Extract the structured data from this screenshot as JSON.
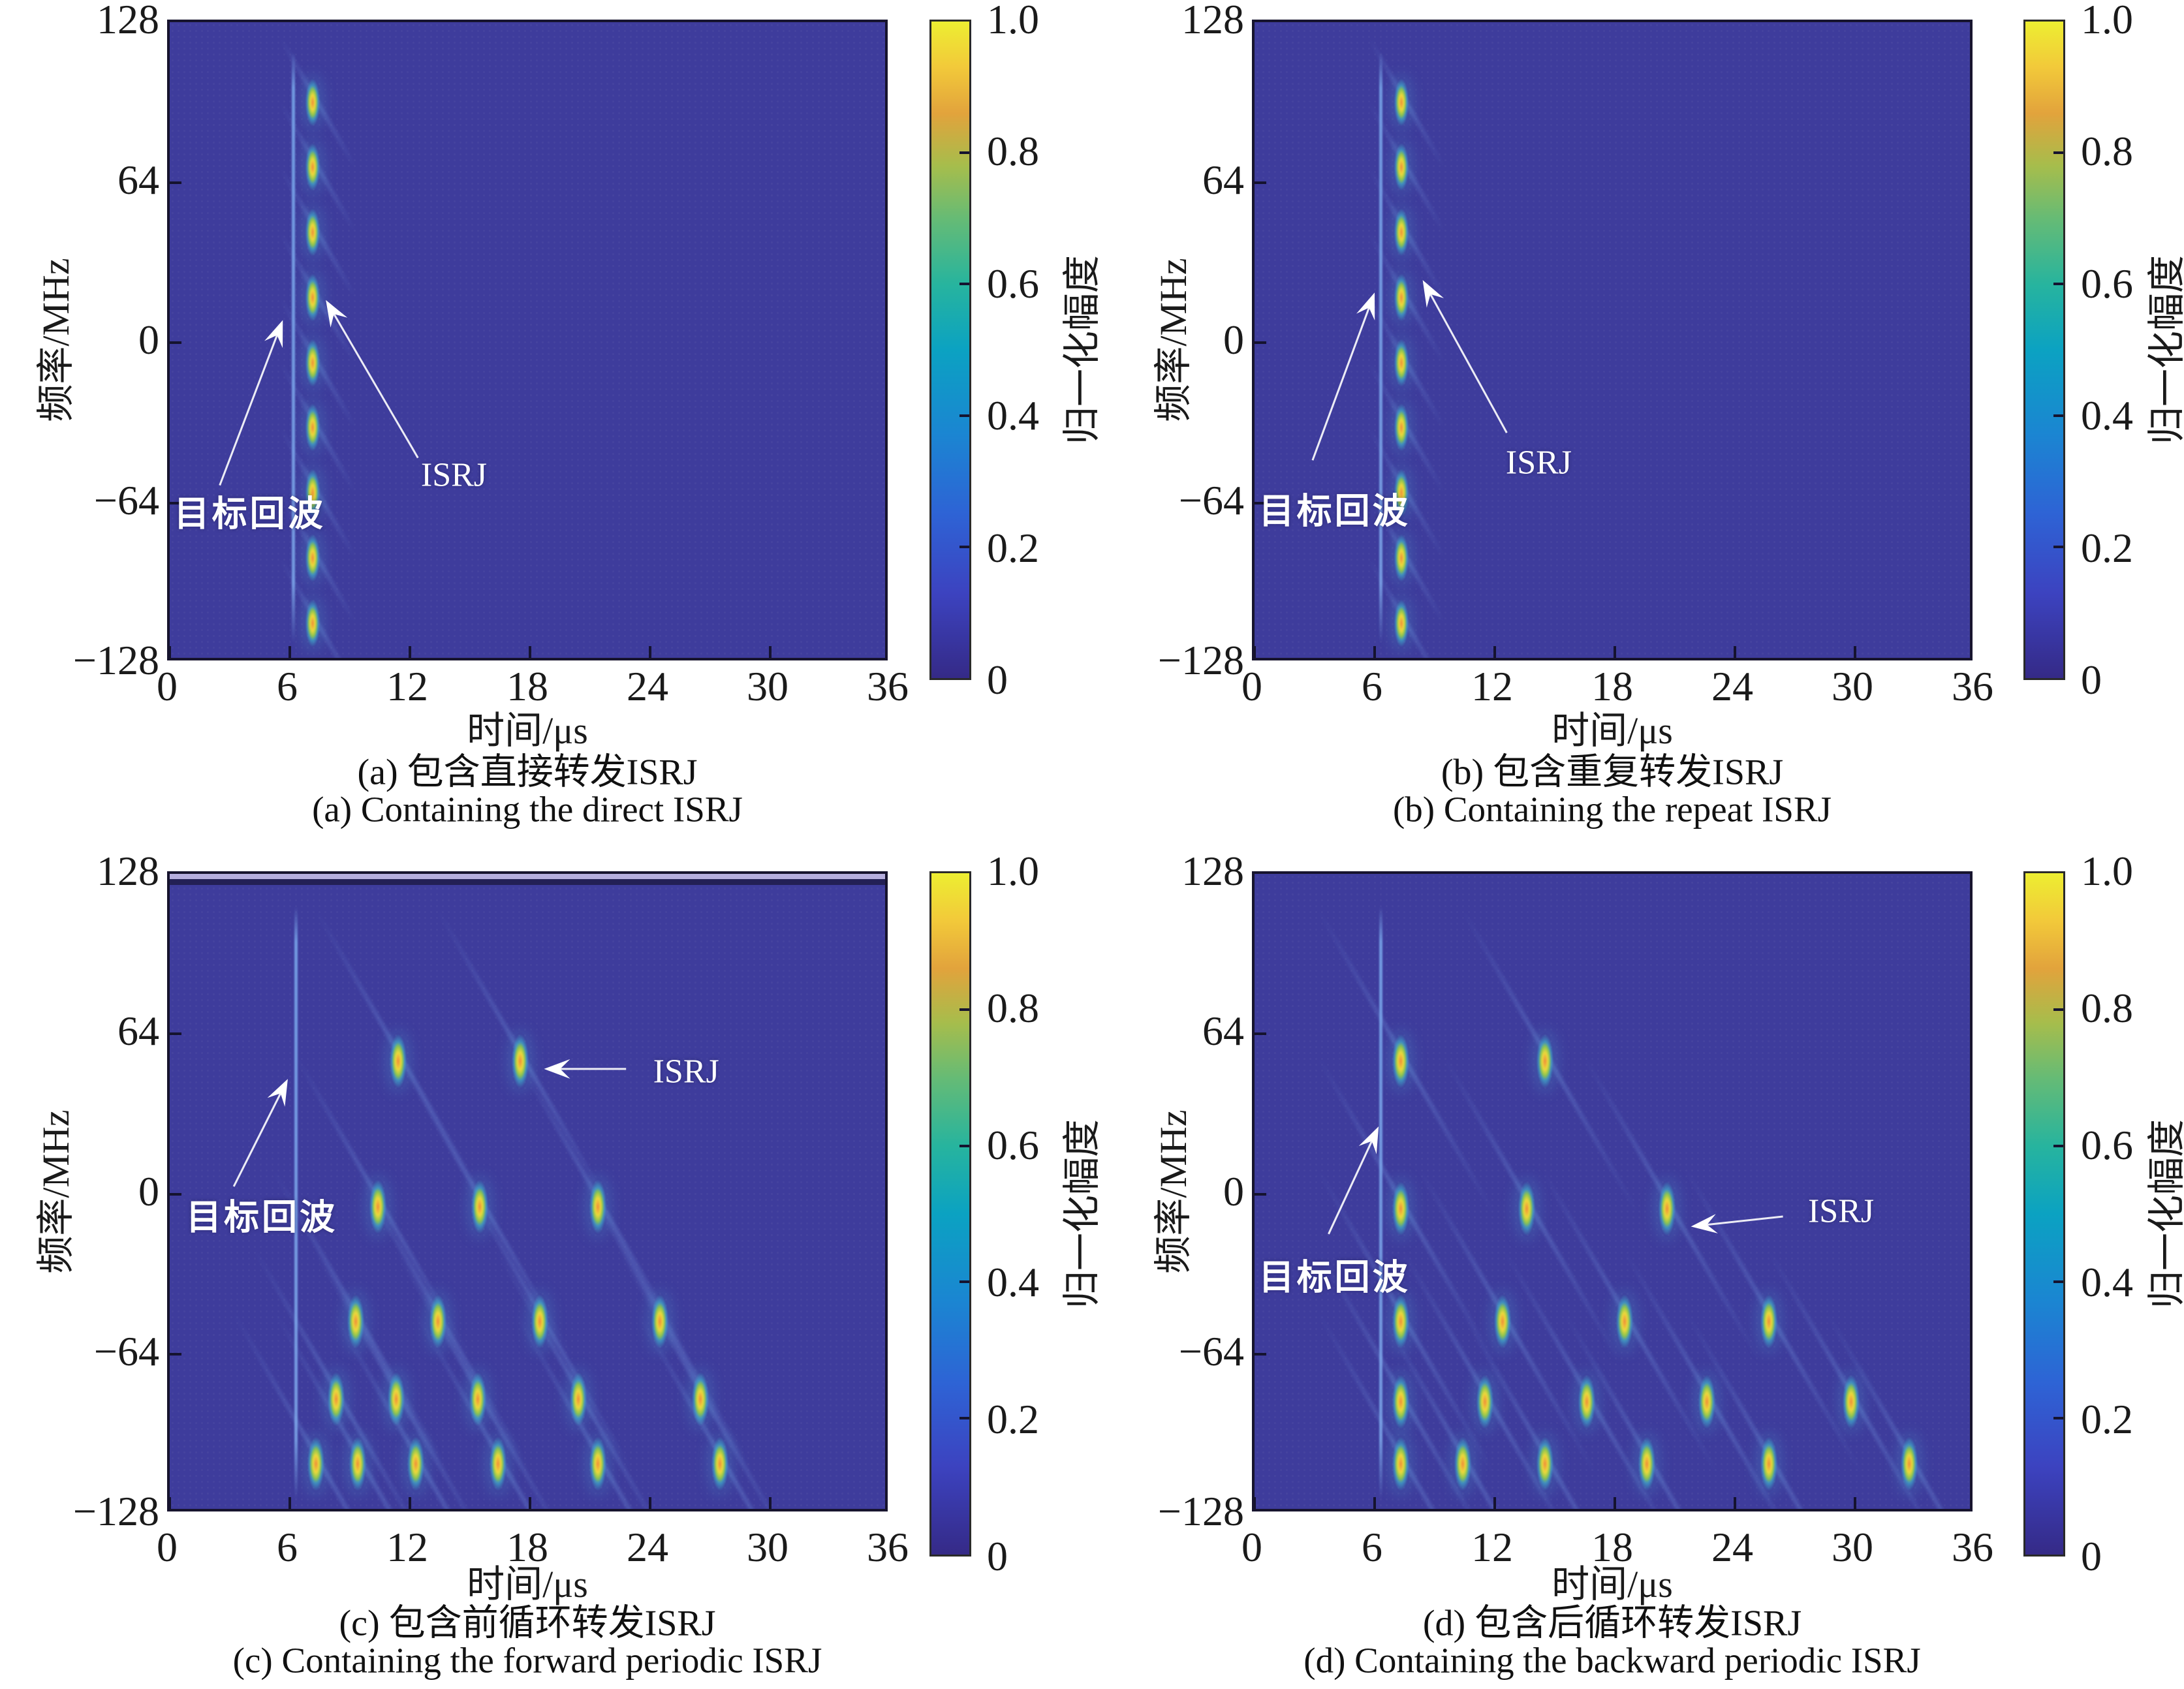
{
  "figure_labels": {
    "xlabel": "时间/μs",
    "ylabel": "频率/MHz",
    "colorbar_label": "归一化幅度",
    "yticks": [
      "128",
      "64",
      "0",
      "−64",
      "−128"
    ],
    "ytick_values": [
      128,
      64,
      0,
      -64,
      -128
    ],
    "xticks": [
      "0",
      "6",
      "12",
      "18",
      "24",
      "30",
      "36"
    ],
    "xtick_values": [
      0,
      6,
      12,
      18,
      24,
      30,
      36
    ],
    "colorbar_ticks": [
      "1.0",
      "0.8",
      "0.6",
      "0.4",
      "0.2",
      "0"
    ],
    "colorbar_tick_values": [
      1.0,
      0.8,
      0.6,
      0.4,
      0.2,
      0
    ]
  },
  "colors": {
    "plot_background": "#3e3c9c",
    "axis_line": "#17142e",
    "annotation": "#ffffff",
    "colorbar_stops": [
      "#352a87 0%",
      "#3c43c0 13%",
      "#2e63d5 25%",
      "#1b85d2 37%",
      "#0ba2c2 50%",
      "#27b49e 60%",
      "#66bb75 70%",
      "#a6bd4c 78%",
      "#e2a33c 86%",
      "#f2c93a 93%",
      "#edee31 100%"
    ]
  },
  "chart_data": [
    {
      "id": "a",
      "type": "heatmap",
      "subtype": "time-frequency spectrogram",
      "caption_zh": "(a) 包含直接转发ISRJ",
      "caption_en": "(a) Containing the direct ISRJ",
      "xlabel": "时间/μs",
      "ylabel": "频率/MHz",
      "xlim": [
        0,
        36
      ],
      "ylim": [
        -128,
        128
      ],
      "colormap": "parula",
      "target_echo": {
        "t": 6.15,
        "f_min": -120,
        "f_max": 116
      },
      "isrj_column": {
        "t": 7.15,
        "segment_f": [
          96,
          70,
          44,
          18,
          -8,
          -34,
          -60,
          -86,
          -112
        ],
        "segment_height_mhz": 15
      },
      "blob_rows": [],
      "annotations": [
        {
          "text": "目标回波",
          "lang": "zh",
          "t": 4.0,
          "f": -67,
          "arrow": {
            "from": [
              2.5,
              -57
            ],
            "to": [
              5.65,
              9
            ]
          }
        },
        {
          "text": "ISRJ",
          "lang": "en",
          "t": 14.2,
          "f": -53,
          "arrow": {
            "from": [
              12.4,
              -46
            ],
            "to": [
              7.8,
              17
            ]
          }
        }
      ],
      "edge_bands": false
    },
    {
      "id": "b",
      "type": "heatmap",
      "subtype": "time-frequency spectrogram",
      "caption_zh": "(b) 包含重复转发ISRJ",
      "caption_en": "(b) Containing the repeat ISRJ",
      "xlabel": "时间/μs",
      "ylabel": "频率/MHz",
      "xlim": [
        0,
        36
      ],
      "ylim": [
        -128,
        128
      ],
      "colormap": "parula",
      "target_echo": {
        "t": 6.3,
        "f_min": -120,
        "f_max": 116
      },
      "isrj_column": {
        "t": 7.35,
        "segment_f": [
          96,
          70,
          44,
          18,
          -8,
          -34,
          -60,
          -86,
          -112
        ],
        "segment_height_mhz": 15
      },
      "blob_rows": [],
      "annotations": [
        {
          "text": "目标回波",
          "lang": "zh",
          "t": 4.0,
          "f": -66,
          "arrow": {
            "from": [
              2.9,
              -47
            ],
            "to": [
              6.0,
              20
            ]
          }
        },
        {
          "text": "ISRJ",
          "lang": "en",
          "t": 14.2,
          "f": -48,
          "arrow": {
            "from": [
              12.6,
              -36
            ],
            "to": [
              8.4,
              25
            ]
          }
        }
      ],
      "edge_bands": false
    },
    {
      "id": "c",
      "type": "heatmap",
      "subtype": "time-frequency spectrogram",
      "caption_zh": "(c) 包含前循环转发ISRJ",
      "caption_en": "(c) Containing the forward periodic ISRJ",
      "xlabel": "时间/μs",
      "ylabel": "频率/MHz",
      "xlim": [
        0,
        36
      ],
      "ylim": [
        -128,
        128
      ],
      "colormap": "parula",
      "target_echo": {
        "t": 6.3,
        "f_min": -122,
        "f_max": 115
      },
      "isrj_column": null,
      "blob_rows": [
        {
          "f": 53,
          "t": [
            11.4,
            17.5
          ]
        },
        {
          "f": -5,
          "t": [
            10.4,
            15.5,
            21.4
          ]
        },
        {
          "f": -51,
          "t": [
            9.3,
            13.4,
            18.5,
            24.5
          ]
        },
        {
          "f": -82,
          "t": [
            8.3,
            11.3,
            15.4,
            20.4,
            26.5
          ]
        },
        {
          "f": -108,
          "t": [
            7.3,
            9.4,
            12.3,
            16.4,
            21.4,
            27.5
          ]
        }
      ],
      "annotations": [
        {
          "text": "目标回波",
          "lang": "zh",
          "t": 4.6,
          "f": -8,
          "arrow": {
            "from": [
              3.2,
              3
            ],
            "to": [
              5.9,
              46
            ]
          }
        },
        {
          "text": "ISRJ",
          "lang": "en",
          "t": 25.8,
          "f": 49,
          "arrow": {
            "from": [
              22.8,
              50
            ],
            "to": [
              18.7,
              50
            ]
          }
        }
      ],
      "edge_bands": true
    },
    {
      "id": "d",
      "type": "heatmap",
      "subtype": "time-frequency spectrogram",
      "caption_zh": "(d) 包含后循环转发ISRJ",
      "caption_en": "(d) Containing the backward periodic ISRJ",
      "xlabel": "时间/μs",
      "ylabel": "频率/MHz",
      "xlim": [
        0,
        36
      ],
      "ylim": [
        -128,
        128
      ],
      "colormap": "parula",
      "target_echo": {
        "t": 6.3,
        "f_min": -122,
        "f_max": 115
      },
      "isrj_column": null,
      "blob_rows": [
        {
          "f": 53,
          "t": [
            7.3,
            14.5
          ]
        },
        {
          "f": -6,
          "t": [
            7.3,
            13.6,
            20.6
          ]
        },
        {
          "f": -51,
          "t": [
            7.3,
            12.4,
            18.5,
            25.7
          ]
        },
        {
          "f": -83,
          "t": [
            7.3,
            11.5,
            16.6,
            22.6,
            29.8
          ]
        },
        {
          "f": -108,
          "t": [
            7.3,
            10.4,
            14.5,
            19.6,
            25.7,
            32.7
          ]
        }
      ],
      "annotations": [
        {
          "text": "目标回波",
          "lang": "zh",
          "t": 4.0,
          "f": -32,
          "arrow": {
            "from": [
              3.7,
              -16
            ],
            "to": [
              6.2,
              27
            ]
          }
        },
        {
          "text": "ISRJ",
          "lang": "en",
          "t": 29.3,
          "f": -7,
          "arrow": {
            "from": [
              26.4,
              -9
            ],
            "to": [
              21.8,
              -13
            ]
          }
        }
      ],
      "edge_bands": false
    }
  ]
}
